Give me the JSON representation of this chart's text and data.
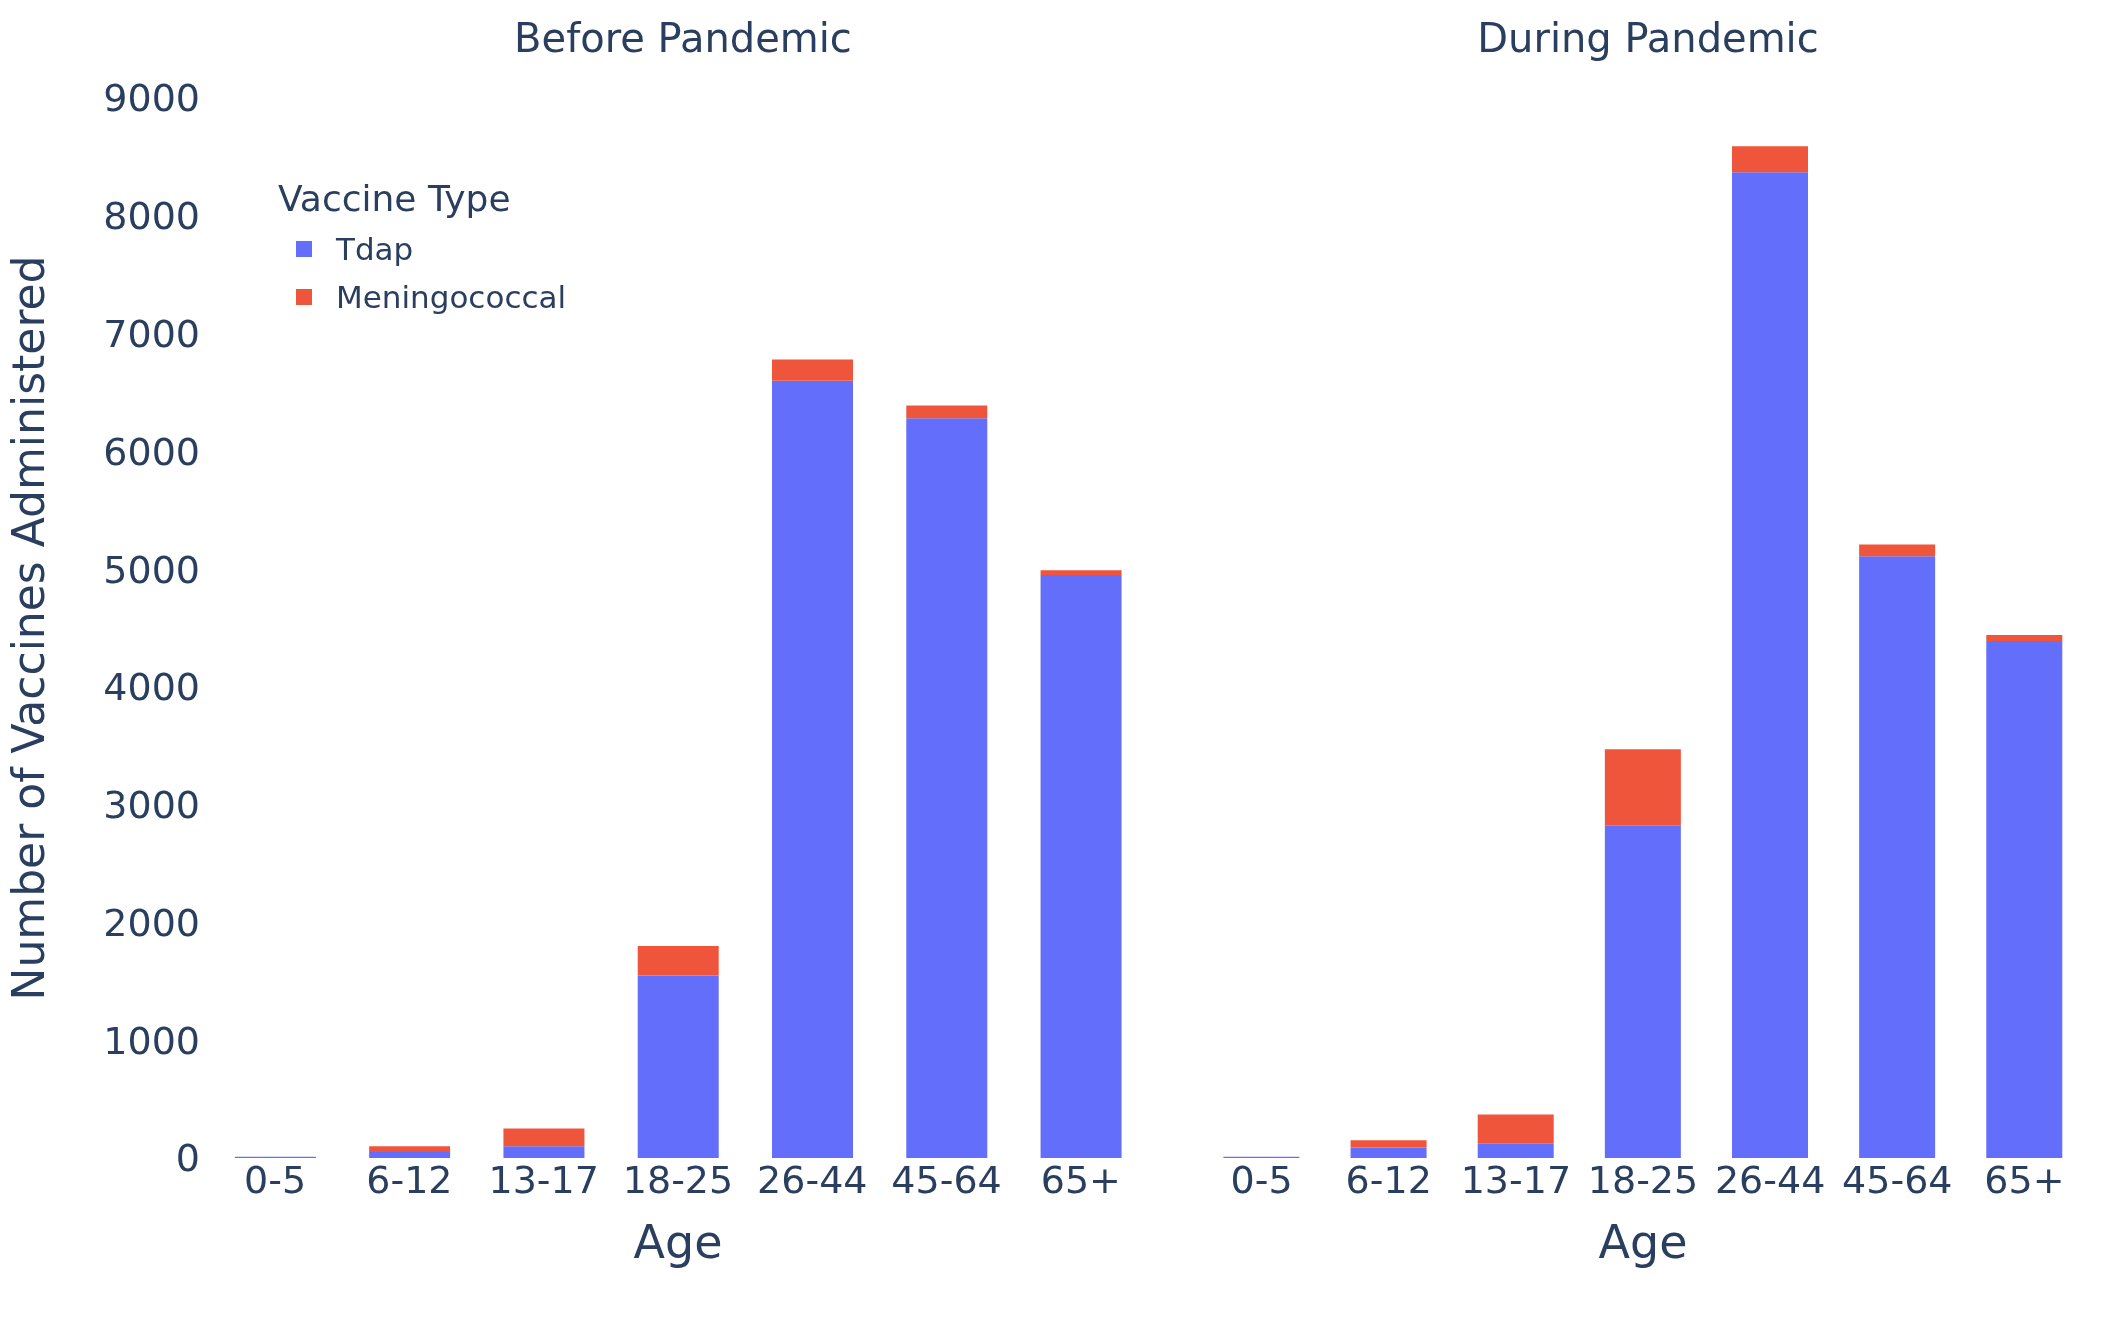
{
  "chart_data": [
    {
      "type": "bar",
      "title": "Before Pandemic",
      "xlabel": "Age",
      "ylabel": "Number of Vaccines Administered",
      "legend_title": "Vaccine Type",
      "legend": "top left",
      "stacked": true,
      "categories": [
        "0-5",
        "6-12",
        "13-17",
        "18-25",
        "26-44",
        "45-64",
        "65+"
      ],
      "series": [
        {
          "name": "Tdap",
          "color": "#636efa",
          "values": [
            10,
            50,
            100,
            1550,
            6600,
            6280,
            4950
          ]
        },
        {
          "name": "Meningococcal",
          "color": "#ef553b",
          "values": [
            0,
            50,
            150,
            250,
            180,
            110,
            40
          ]
        }
      ],
      "ylim": [
        0,
        9000
      ],
      "yticks": [
        0,
        1000,
        2000,
        3000,
        4000,
        5000,
        6000,
        7000,
        8000,
        9000
      ]
    },
    {
      "type": "bar",
      "title": "During Pandemic",
      "xlabel": "Age",
      "stacked": true,
      "tick_labels": "x",
      "categories": [
        "0-5",
        "6-12",
        "13-17",
        "18-25",
        "26-44",
        "45-64",
        "65+"
      ],
      "series": [
        {
          "color": "#636efa",
          "values": [
            10,
            90,
            120,
            2820,
            8370,
            5110,
            4390
          ]
        },
        {
          "color": "#ef553b",
          "values": [
            0,
            60,
            250,
            650,
            220,
            100,
            50
          ]
        }
      ],
      "ylim": [
        0,
        9000
      ],
      "yticks": [
        0,
        1000,
        2000,
        3000,
        4000,
        5000,
        6000,
        7000,
        8000,
        9000
      ]
    }
  ]
}
